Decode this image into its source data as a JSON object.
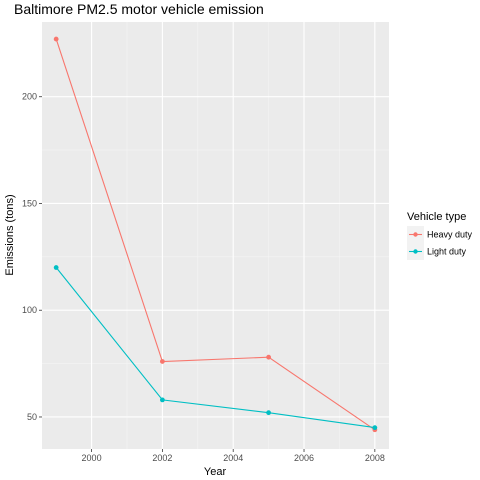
{
  "chart_data": {
    "type": "line",
    "title": "Baltimore PM2.5 motor vehicle emission",
    "xlabel": "Year",
    "ylabel": "Emissions (tons)",
    "x": [
      1999,
      2002,
      2005,
      2008
    ],
    "xlim": [
      1998.6,
      2008.4
    ],
    "ylim": [
      35,
      235
    ],
    "xticks": [
      2000,
      2002,
      2004,
      2006,
      2008
    ],
    "yticks": [
      50,
      100,
      150,
      200
    ],
    "grid": true,
    "legend": {
      "title": "Vehicle type",
      "position": "right"
    },
    "series": [
      {
        "name": "Heavy duty",
        "color": "#F8766D",
        "values": [
          227,
          76,
          78,
          44
        ]
      },
      {
        "name": "Light duty",
        "color": "#00BFC4",
        "values": [
          120,
          58,
          52,
          45
        ]
      }
    ]
  }
}
